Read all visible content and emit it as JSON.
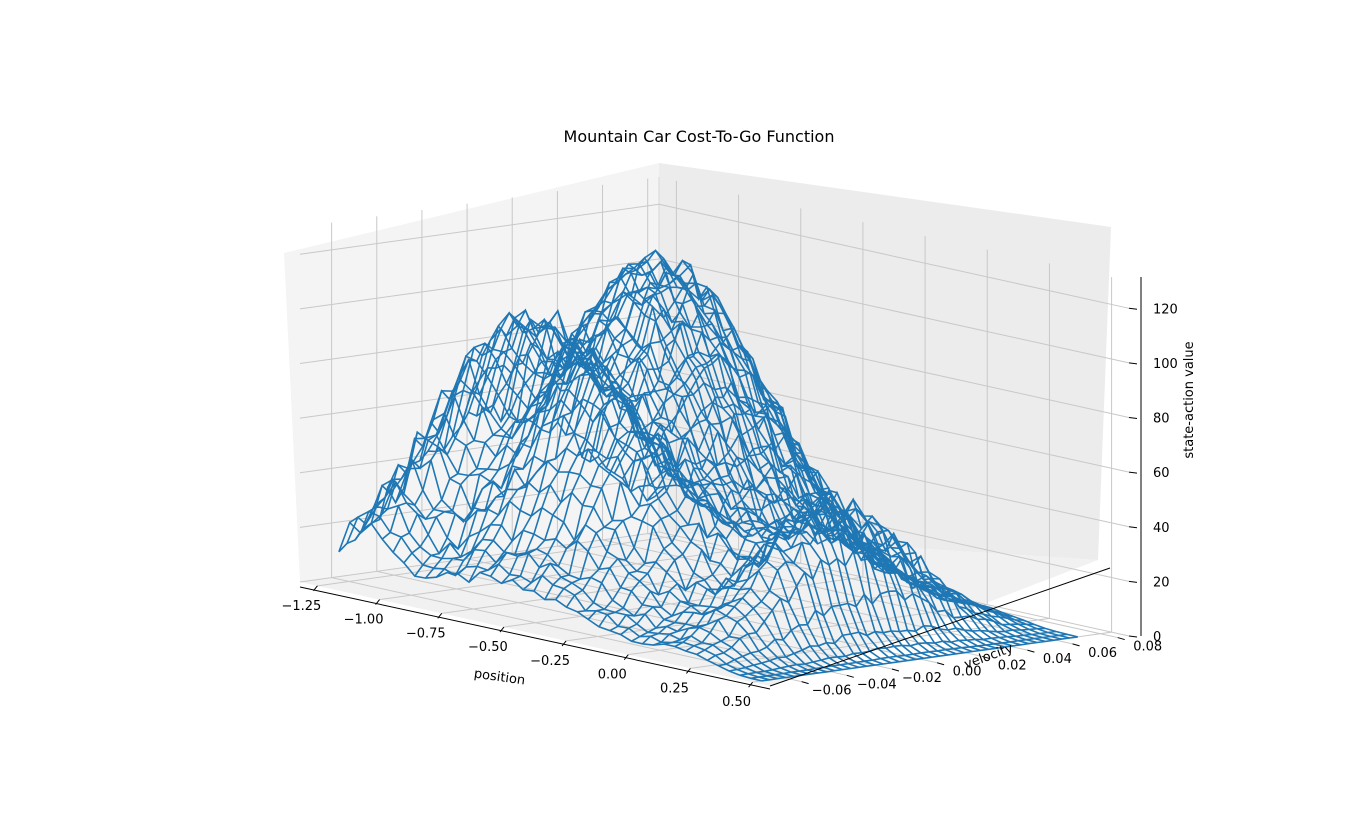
{
  "chart_data": {
    "type": "surface-wireframe",
    "title": "Mountain Car Cost-To-Go Function",
    "xlabel": "position",
    "ylabel": "velocity",
    "zlabel": "state-action value",
    "xlim": [
      -1.2,
      0.5
    ],
    "ylim": [
      -0.07,
      0.07
    ],
    "zlim": [
      0,
      130
    ],
    "xticks": [
      "−1.25",
      "−1.00",
      "−0.75",
      "−0.50",
      "−0.25",
      "0.00",
      "0.25",
      "0.50"
    ],
    "xtick_values": [
      -1.25,
      -1.0,
      -0.75,
      -0.5,
      -0.25,
      0.0,
      0.25,
      0.5
    ],
    "yticks": [
      "−0.06",
      "−0.04",
      "−0.02",
      "0.00",
      "0.02",
      "0.04",
      "0.06",
      "0.08"
    ],
    "ytick_values": [
      -0.06,
      -0.04,
      -0.02,
      0.0,
      0.02,
      0.04,
      0.06,
      0.08
    ],
    "zticks": [
      "0",
      "20",
      "40",
      "60",
      "80",
      "100",
      "120"
    ],
    "ztick_values": [
      0,
      20,
      40,
      60,
      80,
      100,
      120
    ],
    "grid": true,
    "grid_size": [
      40,
      40
    ],
    "line_color": "#1f77b4",
    "peak_value": 124,
    "peak_position": -0.55,
    "peak_velocity": 0.0
  }
}
